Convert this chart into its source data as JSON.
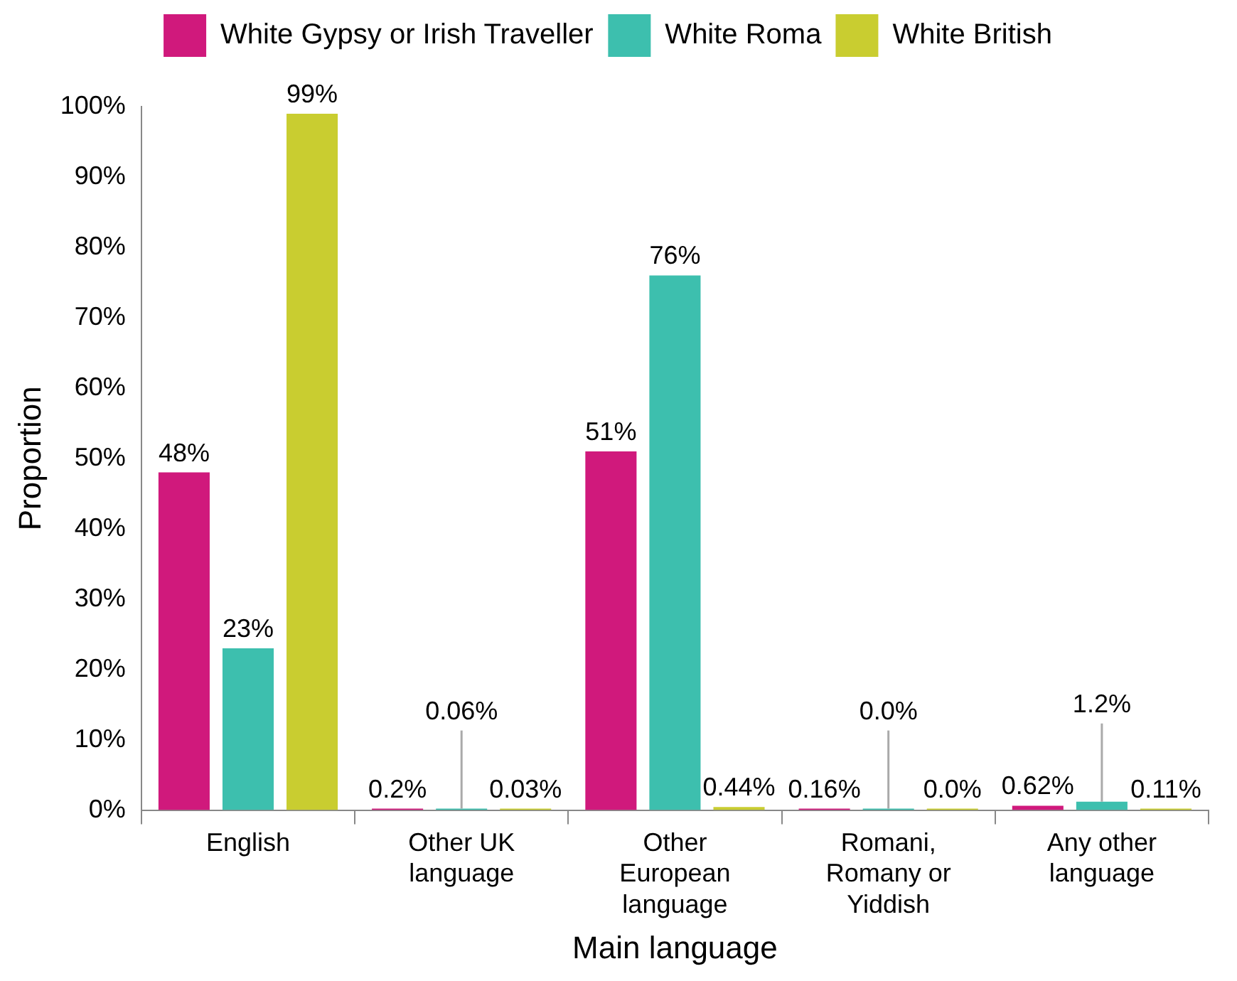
{
  "chart_data": {
    "type": "bar",
    "xlabel": "Main language",
    "ylabel": "Proportion",
    "categories": [
      "English",
      "Other UK language",
      "Other European language",
      "Romani, Romany or Yiddish",
      "Any other language"
    ],
    "series": [
      {
        "name": "White Gypsy or Irish Traveller",
        "color": "#d0197c",
        "values": [
          48,
          0.2,
          51,
          0.16,
          0.62
        ],
        "value_labels": [
          "48%",
          "0.2%",
          "51%",
          "0.16%",
          "0.62%"
        ]
      },
      {
        "name": "White Roma",
        "color": "#3dbfae",
        "values": [
          23,
          0.06,
          76,
          0.0,
          1.2
        ],
        "value_labels": [
          "23%",
          "0.06%",
          "76%",
          "0.0%",
          "1.2%"
        ]
      },
      {
        "name": "White British",
        "color": "#c9cd30",
        "values": [
          99,
          0.03,
          0.44,
          0.0,
          0.11
        ],
        "value_labels": [
          "99%",
          "0.03%",
          "0.44%",
          "0.0%",
          "0.11%"
        ]
      }
    ],
    "ylim": [
      0,
      100
    ],
    "yticks": [
      {
        "value": 0,
        "label": "0%"
      },
      {
        "value": 10,
        "label": "10%"
      },
      {
        "value": 20,
        "label": "20%"
      },
      {
        "value": 30,
        "label": "30%"
      },
      {
        "value": 40,
        "label": "40%"
      },
      {
        "value": 50,
        "label": "50%"
      },
      {
        "value": 60,
        "label": "60%"
      },
      {
        "value": 70,
        "label": "70%"
      },
      {
        "value": 80,
        "label": "80%"
      },
      {
        "value": 90,
        "label": "90%"
      },
      {
        "value": 100,
        "label": "100%"
      }
    ],
    "grid": false,
    "legend": "top"
  }
}
